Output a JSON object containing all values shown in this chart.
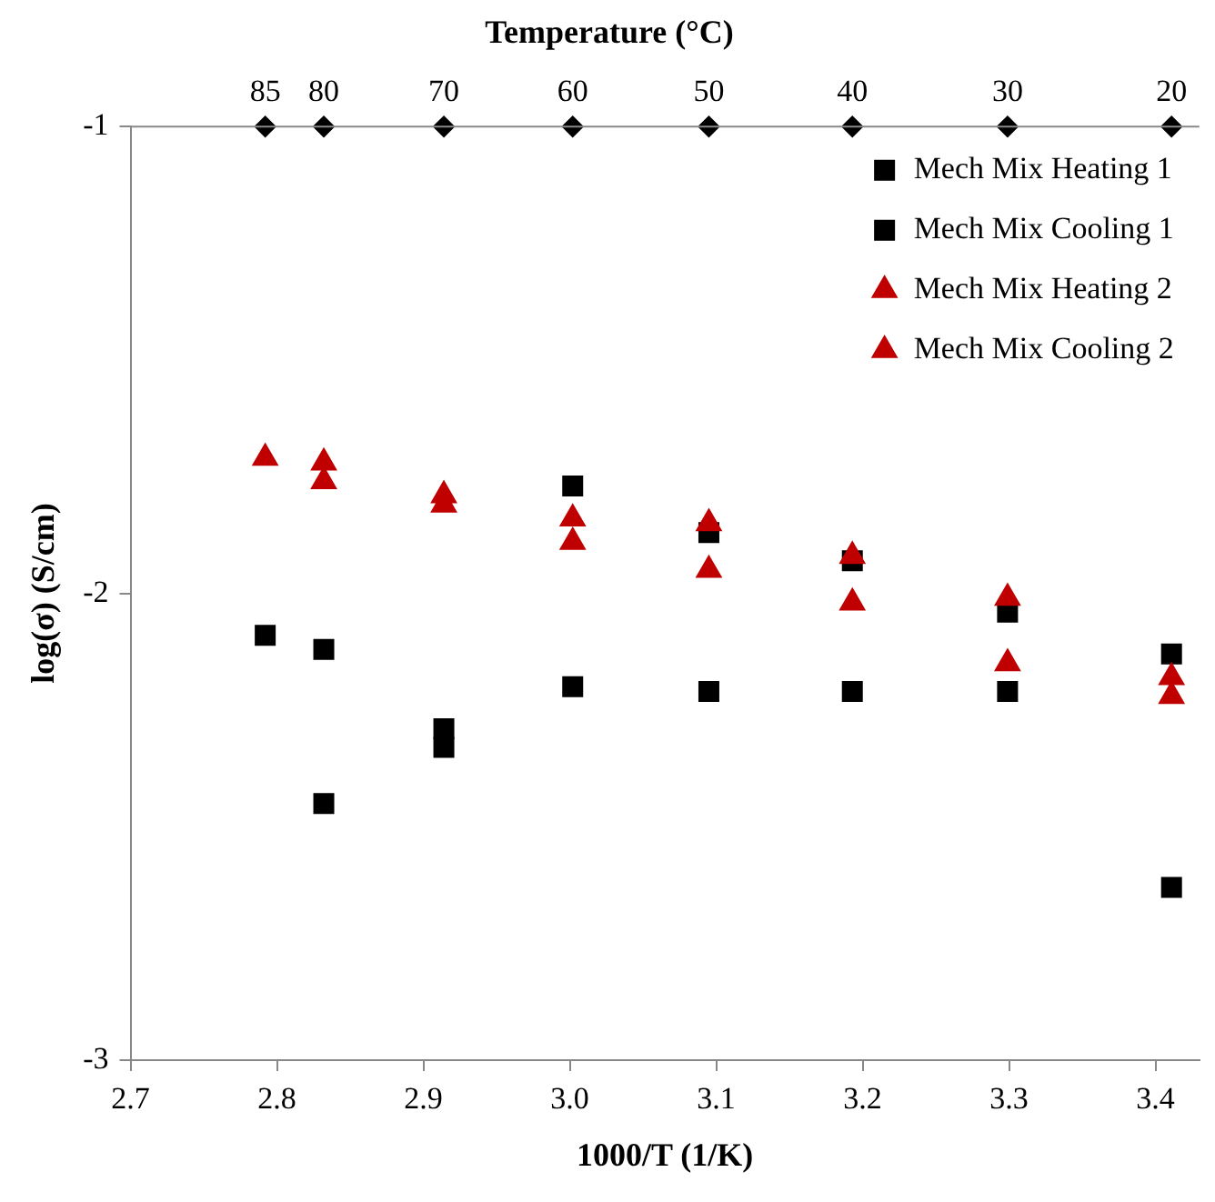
{
  "chart_data": {
    "type": "scatter",
    "title": "Temperature (°C)",
    "xlabel": "1000/T (1/K)",
    "ylabel": "log(σ) (S/cm)",
    "x": [
      2.792,
      2.832,
      2.914,
      3.002,
      3.095,
      3.193,
      3.299,
      3.411
    ],
    "series": [
      {
        "name": "Mech Mix Heating 1",
        "color": "#000000",
        "marker": "square",
        "values": [
          -2.09,
          -2.12,
          -2.33,
          -1.77,
          -1.87,
          -1.93,
          -2.04,
          -2.63
        ]
      },
      {
        "name": "Mech Mix Cooling 1",
        "color": "#000000",
        "marker": "square",
        "values": [
          null,
          -2.45,
          -2.29,
          -2.2,
          -2.21,
          -2.21,
          -2.21,
          -2.13
        ]
      },
      {
        "name": "Mech Mix Heating 2",
        "color": "#c00000",
        "marker": "triangle",
        "values": [
          -1.71,
          -1.76,
          -1.79,
          -1.84,
          -1.85,
          -1.92,
          -2.01,
          -2.18
        ]
      },
      {
        "name": "Mech Mix Cooling 2",
        "color": "#c00000",
        "marker": "triangle",
        "values": [
          null,
          -1.72,
          -1.81,
          -1.89,
          -1.95,
          -2.02,
          -2.15,
          -2.22
        ]
      },
      {
        "color": "#000000",
        "marker": "diamond",
        "values": [
          -1,
          -1,
          -1,
          -1,
          -1,
          -1,
          -1,
          -1
        ]
      }
    ],
    "annotations": [
      {
        "text": "85",
        "x": 2.792,
        "y": -1
      },
      {
        "text": "80",
        "x": 2.832,
        "y": -1
      },
      {
        "text": "70",
        "x": 2.914,
        "y": -1
      },
      {
        "text": "60",
        "x": 3.002,
        "y": -1
      },
      {
        "text": "50",
        "x": 3.095,
        "y": -1
      },
      {
        "text": "40",
        "x": 3.193,
        "y": -1
      },
      {
        "text": "30",
        "x": 3.299,
        "y": -1
      },
      {
        "text": "20",
        "x": 3.411,
        "y": -1
      }
    ],
    "xlim": [
      2.7,
      3.43
    ],
    "xticks": [
      2.7,
      2.8,
      2.9,
      {
        "value": 3,
        "label": "3.0"
      },
      3.1,
      3.2,
      3.3,
      3.4
    ],
    "ylim": [
      -3,
      -1
    ],
    "yticks": [
      -3,
      -2,
      -1
    ],
    "grid": false,
    "legend": "top right"
  }
}
